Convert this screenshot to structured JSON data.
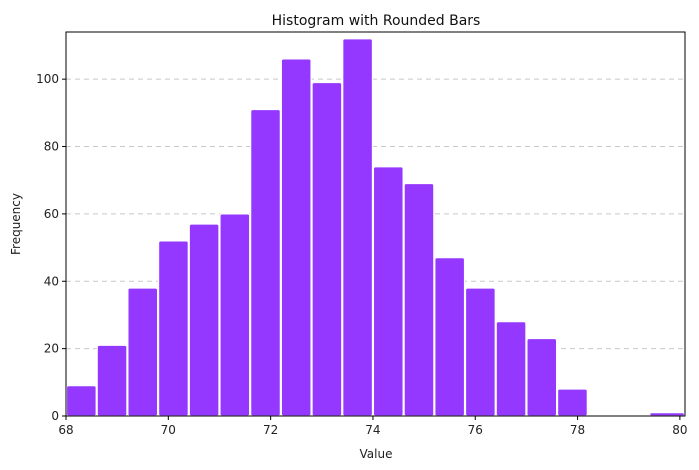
{
  "chart_data": {
    "type": "bar",
    "title": "Histogram with Rounded Bars",
    "xlabel": "Value",
    "ylabel": "Frequency",
    "xlim": [
      68,
      80.1
    ],
    "ylim": [
      0,
      114
    ],
    "x_ticks": [
      68,
      70,
      72,
      74,
      76,
      78,
      80
    ],
    "y_ticks": [
      0,
      20,
      40,
      60,
      80,
      100
    ],
    "grid": "y-dashed",
    "bar_color": "#9437ff",
    "edge_color": "#ffffff",
    "bins": [
      {
        "start": 68.0,
        "end": 68.6,
        "value": 9
      },
      {
        "start": 68.6,
        "end": 69.2,
        "value": 21
      },
      {
        "start": 69.2,
        "end": 69.8,
        "value": 38
      },
      {
        "start": 69.8,
        "end": 70.4,
        "value": 52
      },
      {
        "start": 70.4,
        "end": 71.0,
        "value": 57
      },
      {
        "start": 71.0,
        "end": 71.6,
        "value": 60
      },
      {
        "start": 71.6,
        "end": 72.2,
        "value": 91
      },
      {
        "start": 72.2,
        "end": 72.8,
        "value": 106
      },
      {
        "start": 72.8,
        "end": 73.4,
        "value": 99
      },
      {
        "start": 73.4,
        "end": 74.0,
        "value": 112
      },
      {
        "start": 74.0,
        "end": 74.6,
        "value": 74
      },
      {
        "start": 74.6,
        "end": 75.2,
        "value": 69
      },
      {
        "start": 75.2,
        "end": 75.8,
        "value": 47
      },
      {
        "start": 75.8,
        "end": 76.4,
        "value": 38
      },
      {
        "start": 76.4,
        "end": 77.0,
        "value": 28
      },
      {
        "start": 77.0,
        "end": 77.6,
        "value": 23
      },
      {
        "start": 77.6,
        "end": 78.2,
        "value": 8
      },
      {
        "start": 78.2,
        "end": 78.8,
        "value": 0
      },
      {
        "start": 78.8,
        "end": 79.4,
        "value": 0
      },
      {
        "start": 79.4,
        "end": 80.1,
        "value": 1
      }
    ]
  }
}
